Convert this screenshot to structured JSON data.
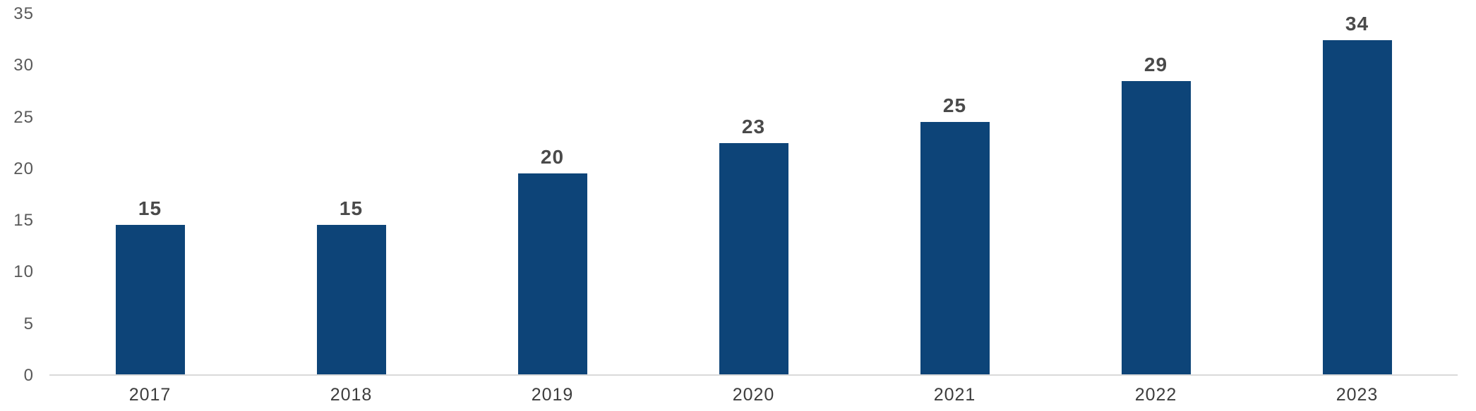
{
  "chart_data": {
    "type": "bar",
    "categories": [
      "2017",
      "2018",
      "2019",
      "2020",
      "2021",
      "2022",
      "2023"
    ],
    "values": [
      15,
      15,
      20,
      23,
      25,
      29,
      34
    ],
    "rendered_bar_values": [
      14.5,
      14.5,
      19.5,
      22.5,
      24.5,
      28.5,
      33.5
    ],
    "y_ticks": [
      0,
      5,
      10,
      15,
      20,
      25,
      30,
      35
    ],
    "ylim": [
      0,
      35
    ],
    "grid": false,
    "legend": false,
    "bar_color": "#0d4478",
    "value_label_color": "#4a4a4a",
    "x_label_color": "#3d3d3d",
    "y_tick_color": "#595959",
    "baseline_color": "#d9d9d9"
  }
}
